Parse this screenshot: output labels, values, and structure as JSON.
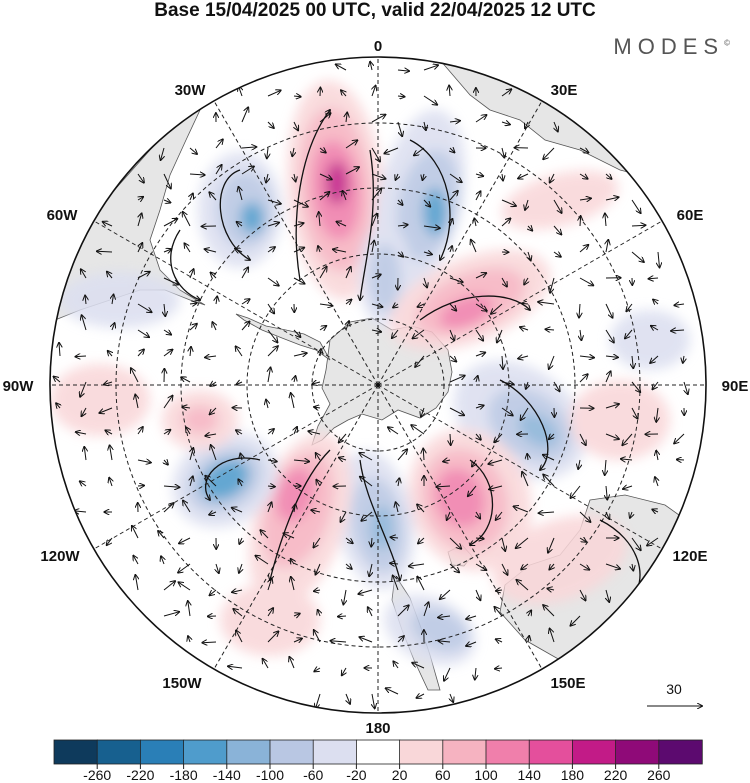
{
  "title": "Base 15/04/2025 00 UTC, valid 22/04/2025 12 UTC",
  "brand": "MODES",
  "brand_mark": "©",
  "meridian_labels": {
    "m0": "0",
    "m30e": "30E",
    "m60e": "60E",
    "m90e": "90E",
    "m120e": "120E",
    "m150e": "150E",
    "m180": "180",
    "m150w": "150W",
    "m120w": "120W",
    "m90w": "90W",
    "m60w": "60W",
    "m30w": "30W"
  },
  "reference_vector": "30",
  "colorbar": {
    "ticks": [
      "-260",
      "-220",
      "-180",
      "-140",
      "-100",
      "-60",
      "-20",
      "20",
      "60",
      "100",
      "140",
      "180",
      "220",
      "260"
    ],
    "colors": [
      "#0e3a5c",
      "#17608f",
      "#2a7fb7",
      "#4f9ccc",
      "#8ab3d8",
      "#b9c7e3",
      "#dcdff0",
      "#ffffff",
      "#f9d7d9",
      "#f6b3c1",
      "#f07fab",
      "#e44f9c",
      "#c21b87",
      "#8f0a78",
      "#5c0a6f"
    ]
  },
  "palette": {
    "land": "#e6e6e6",
    "ocean": "#ffffff",
    "pos_light": "#f9d7d9",
    "pos_mid": "#f6b3c1",
    "pos_strong": "#f07fab",
    "pos_core": "#c21b87",
    "neg_light": "#dcdff0",
    "neg_mid": "#b9c7e3",
    "neg_strong": "#8ab3d8",
    "neg_core": "#4f9ccc"
  },
  "anomaly_centers": [
    {
      "sign": "positive",
      "lon": -8,
      "lat": -40,
      "level": "+200"
    },
    {
      "sign": "negative",
      "lon": 22,
      "lat": -40,
      "level": "-160"
    },
    {
      "sign": "negative",
      "lon": -40,
      "lat": -42,
      "level": "-140"
    },
    {
      "sign": "positive",
      "lon": 63,
      "lat": -52,
      "level": "+160"
    },
    {
      "sign": "negative",
      "lon": 105,
      "lat": -50,
      "level": "-140"
    },
    {
      "sign": "positive",
      "lon": 140,
      "lat": -52,
      "level": "+180"
    },
    {
      "sign": "negative",
      "lon": 172,
      "lat": -50,
      "level": "-120"
    },
    {
      "sign": "positive",
      "lon": -158,
      "lat": -50,
      "level": "+180"
    },
    {
      "sign": "negative",
      "lon": -128,
      "lat": -44,
      "level": "-200"
    },
    {
      "sign": "positive",
      "lon": -105,
      "lat": -48,
      "level": "+100"
    }
  ]
}
